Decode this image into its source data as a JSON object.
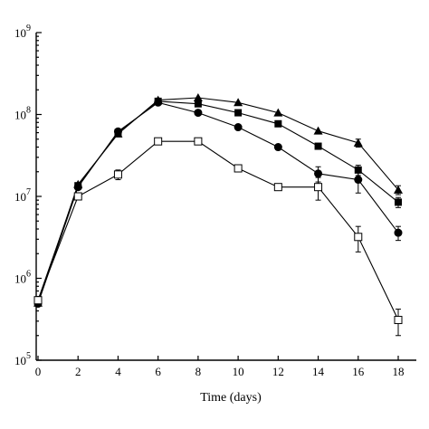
{
  "chart_data": {
    "type": "line",
    "title": "",
    "xlabel": "Time (days)",
    "ylabel": "",
    "xlim": [
      0,
      18
    ],
    "ylim": [
      100000,
      1000000000
    ],
    "yscale": "log",
    "grid": false,
    "x_ticks": [
      0,
      2,
      4,
      6,
      8,
      10,
      12,
      14,
      16,
      18
    ],
    "y_ticks": [
      {
        "value": 100000,
        "base": "10",
        "exp": "5"
      },
      {
        "value": 1000000,
        "base": "10",
        "exp": "6"
      },
      {
        "value": 10000000,
        "base": "10",
        "exp": "7"
      },
      {
        "value": 100000000,
        "base": "10",
        "exp": "8"
      },
      {
        "value": 1000000000,
        "base": "10",
        "exp": "9"
      }
    ],
    "series": [
      {
        "marker": "triangle-filled",
        "x": [
          0,
          2,
          4,
          6,
          8,
          10,
          12,
          14,
          16,
          18
        ],
        "values": [
          500000,
          14000000,
          58000000,
          150000000,
          160000000,
          140000000,
          105000000,
          63000000,
          45000000,
          12000000
        ],
        "err": [
          0,
          0,
          0,
          0,
          0,
          0,
          0,
          0,
          5000000,
          1500000
        ]
      },
      {
        "marker": "square-filled",
        "x": [
          0,
          2,
          4,
          6,
          8,
          10,
          12,
          14,
          16,
          18
        ],
        "values": [
          540000,
          13500000,
          60000000,
          145000000,
          135000000,
          105000000,
          77000000,
          41000000,
          21000000,
          8500000
        ],
        "err": [
          0,
          0,
          0,
          0,
          0,
          0,
          0,
          0,
          3000000,
          1200000
        ]
      },
      {
        "marker": "circle-filled",
        "x": [
          0,
          2,
          4,
          6,
          8,
          10,
          12,
          14,
          16,
          18
        ],
        "values": [
          490000,
          13000000,
          62000000,
          140000000,
          105000000,
          70000000,
          40000000,
          19000000,
          16000000,
          3600000
        ],
        "err": [
          0,
          0,
          0,
          0,
          0,
          0,
          0,
          4000000,
          5000000,
          700000
        ]
      },
      {
        "marker": "square-open",
        "x": [
          0,
          2,
          4,
          6,
          8,
          10,
          12,
          14,
          16,
          18
        ],
        "values": [
          540000,
          10000000,
          18500000,
          47000000,
          47000000,
          22000000,
          13000000,
          13000000,
          3200000,
          310000
        ],
        "err": [
          0,
          0,
          2500000,
          0,
          0,
          0,
          0,
          4000000,
          1100000,
          110000
        ]
      }
    ]
  }
}
